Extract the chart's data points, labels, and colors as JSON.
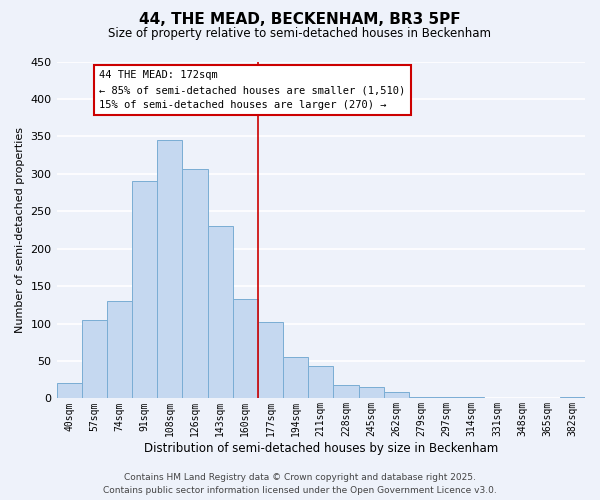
{
  "title": "44, THE MEAD, BECKENHAM, BR3 5PF",
  "subtitle": "Size of property relative to semi-detached houses in Beckenham",
  "xlabel": "Distribution of semi-detached houses by size in Beckenham",
  "ylabel": "Number of semi-detached properties",
  "bar_labels": [
    "40sqm",
    "57sqm",
    "74sqm",
    "91sqm",
    "108sqm",
    "126sqm",
    "143sqm",
    "160sqm",
    "177sqm",
    "194sqm",
    "211sqm",
    "228sqm",
    "245sqm",
    "262sqm",
    "279sqm",
    "297sqm",
    "314sqm",
    "331sqm",
    "348sqm",
    "365sqm",
    "382sqm"
  ],
  "bar_values": [
    20,
    105,
    130,
    290,
    345,
    307,
    230,
    133,
    102,
    55,
    43,
    18,
    15,
    8,
    2,
    2,
    2,
    0,
    0,
    0,
    2
  ],
  "bar_color": "#c5d8f0",
  "bar_edge_color": "#7aadd4",
  "vline_color": "#cc0000",
  "vline_x": 7.5,
  "annotation_title": "44 THE MEAD: 172sqm",
  "annotation_line1": "← 85% of semi-detached houses are smaller (1,510)",
  "annotation_line2": "15% of semi-detached houses are larger (270) →",
  "annotation_box_color": "#ffffff",
  "annotation_box_edge_color": "#cc0000",
  "ylim": [
    0,
    450
  ],
  "yticks": [
    0,
    50,
    100,
    150,
    200,
    250,
    300,
    350,
    400,
    450
  ],
  "footer_line1": "Contains HM Land Registry data © Crown copyright and database right 2025.",
  "footer_line2": "Contains public sector information licensed under the Open Government Licence v3.0.",
  "background_color": "#eef2fa",
  "grid_color": "#ffffff",
  "title_fontsize": 11,
  "subtitle_fontsize": 8.5,
  "xlabel_fontsize": 8.5,
  "ylabel_fontsize": 8,
  "annotation_fontsize": 7.5,
  "footer_fontsize": 6.5,
  "tick_label_fontsize": 7
}
